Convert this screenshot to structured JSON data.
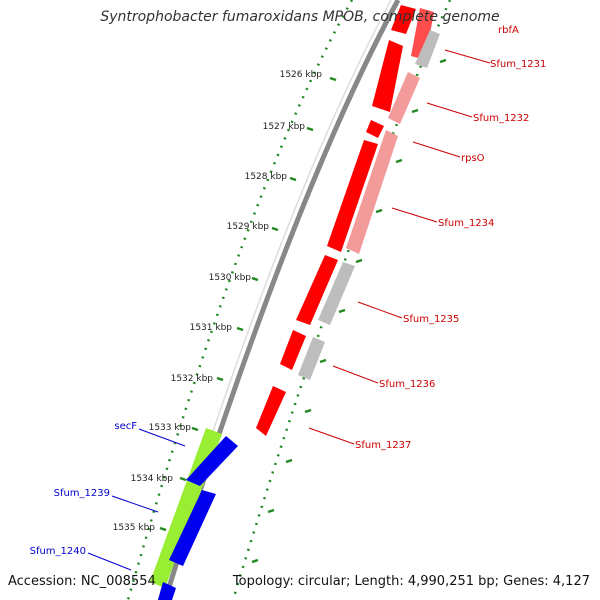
{
  "title": "Syntrophobacter fumaroxidans MPOB, complete genome",
  "accession": "Accession: NC_008554",
  "summary": "Topology: circular; Length: 4,990,251 bp; Genes: 4,127",
  "colors": {
    "backbone": "#888888",
    "forward_cds": "#ff0000",
    "forward_pale": "#f39a9a",
    "reverse_gray": "#bdbdbd",
    "reverse_cds": "#0000ee",
    "reverse_green": "#99ee33",
    "tick_green": "#228822",
    "label_red": "#cc0000",
    "label_blue": "#0000cc"
  },
  "ticks": [
    "1526 kbp",
    "1527 kbp",
    "1528 kbp",
    "1529 kbp",
    "1530 kbp",
    "1531 kbp",
    "1532 kbp",
    "1533 kbp",
    "1534 kbp",
    "1535 kbp"
  ],
  "gene_labels_forward": [
    "rbfA",
    "Sfum_1231",
    "Sfum_1232",
    "rpsO",
    "Sfum_1234",
    "Sfum_1235",
    "Sfum_1236",
    "Sfum_1237"
  ],
  "gene_labels_reverse": [
    "secF",
    "Sfum_1239",
    "Sfum_1240"
  ]
}
